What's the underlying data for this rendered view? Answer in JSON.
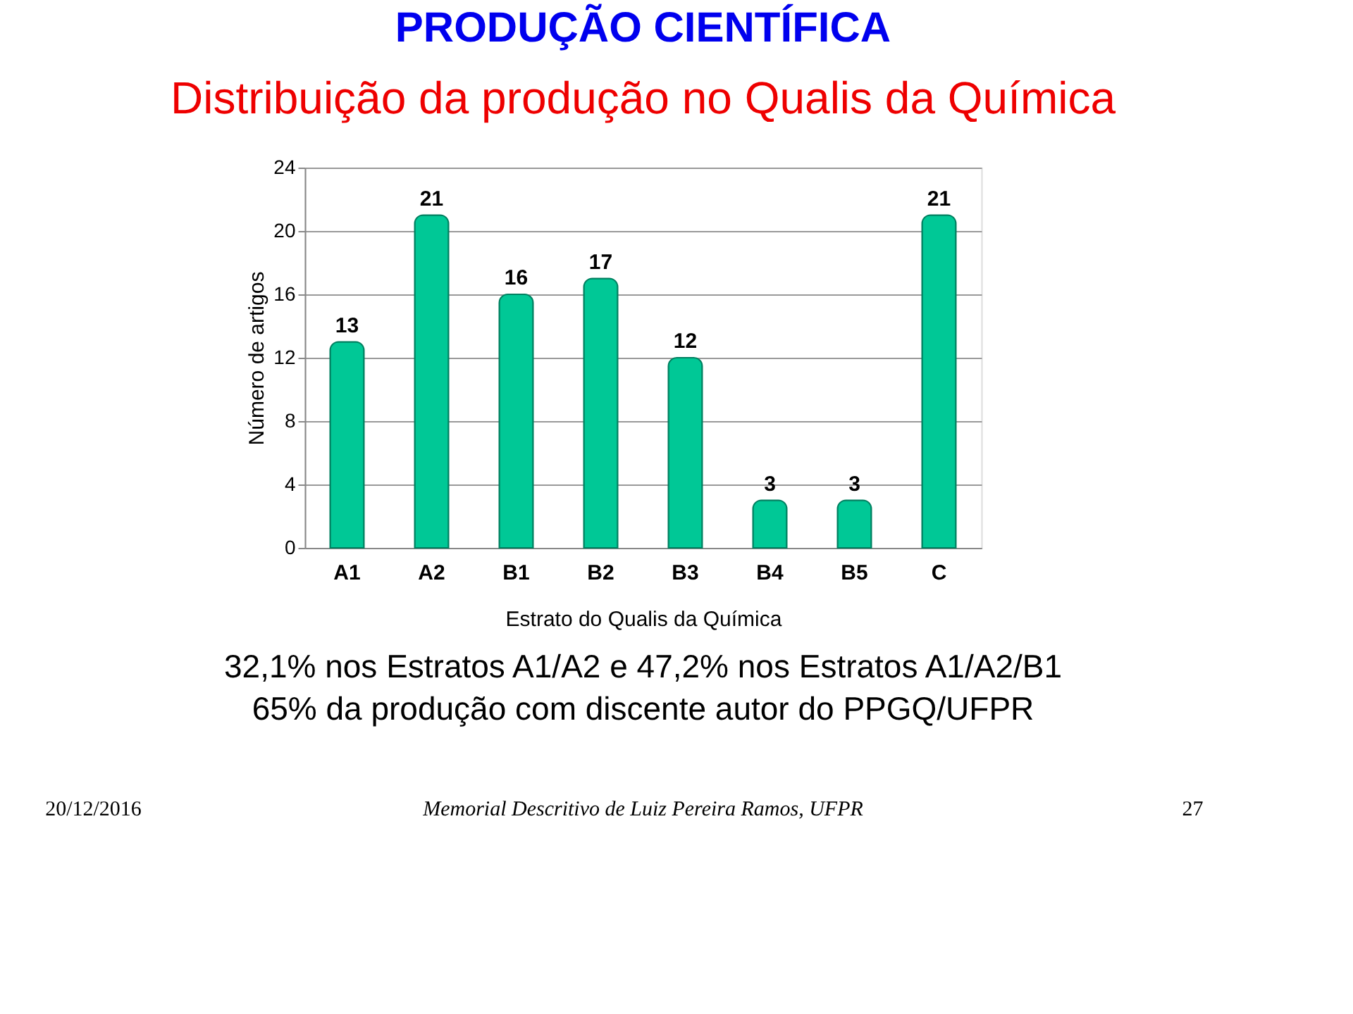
{
  "chart_data": {
    "type": "bar",
    "title": "PRODUÇÃO CIENTÍFICA",
    "subtitle": "Distribuição da produção no Qualis da Química",
    "xlabel": "Estrato do Qualis da Química",
    "ylabel": "Número de artigos",
    "categories": [
      "A1",
      "A2",
      "B1",
      "B2",
      "B3",
      "B4",
      "B5",
      "C"
    ],
    "values": [
      13,
      21,
      16,
      17,
      12,
      3,
      3,
      21
    ],
    "color": "#00c896",
    "ylim": [
      0,
      24
    ],
    "yticks": [
      0,
      4,
      8,
      12,
      16,
      20,
      24
    ],
    "grid": "y",
    "data_labels": true,
    "annotations": [
      "32,1% nos Estratos A1/A2 e 47,2% nos Estratos A1/A2/B1",
      "65% da produção com discente autor do PPGQ/UFPR",
      "20/12/2016",
      "Memorial Descritivo de Luiz Pereira Ramos, UFPR",
      "27"
    ]
  }
}
